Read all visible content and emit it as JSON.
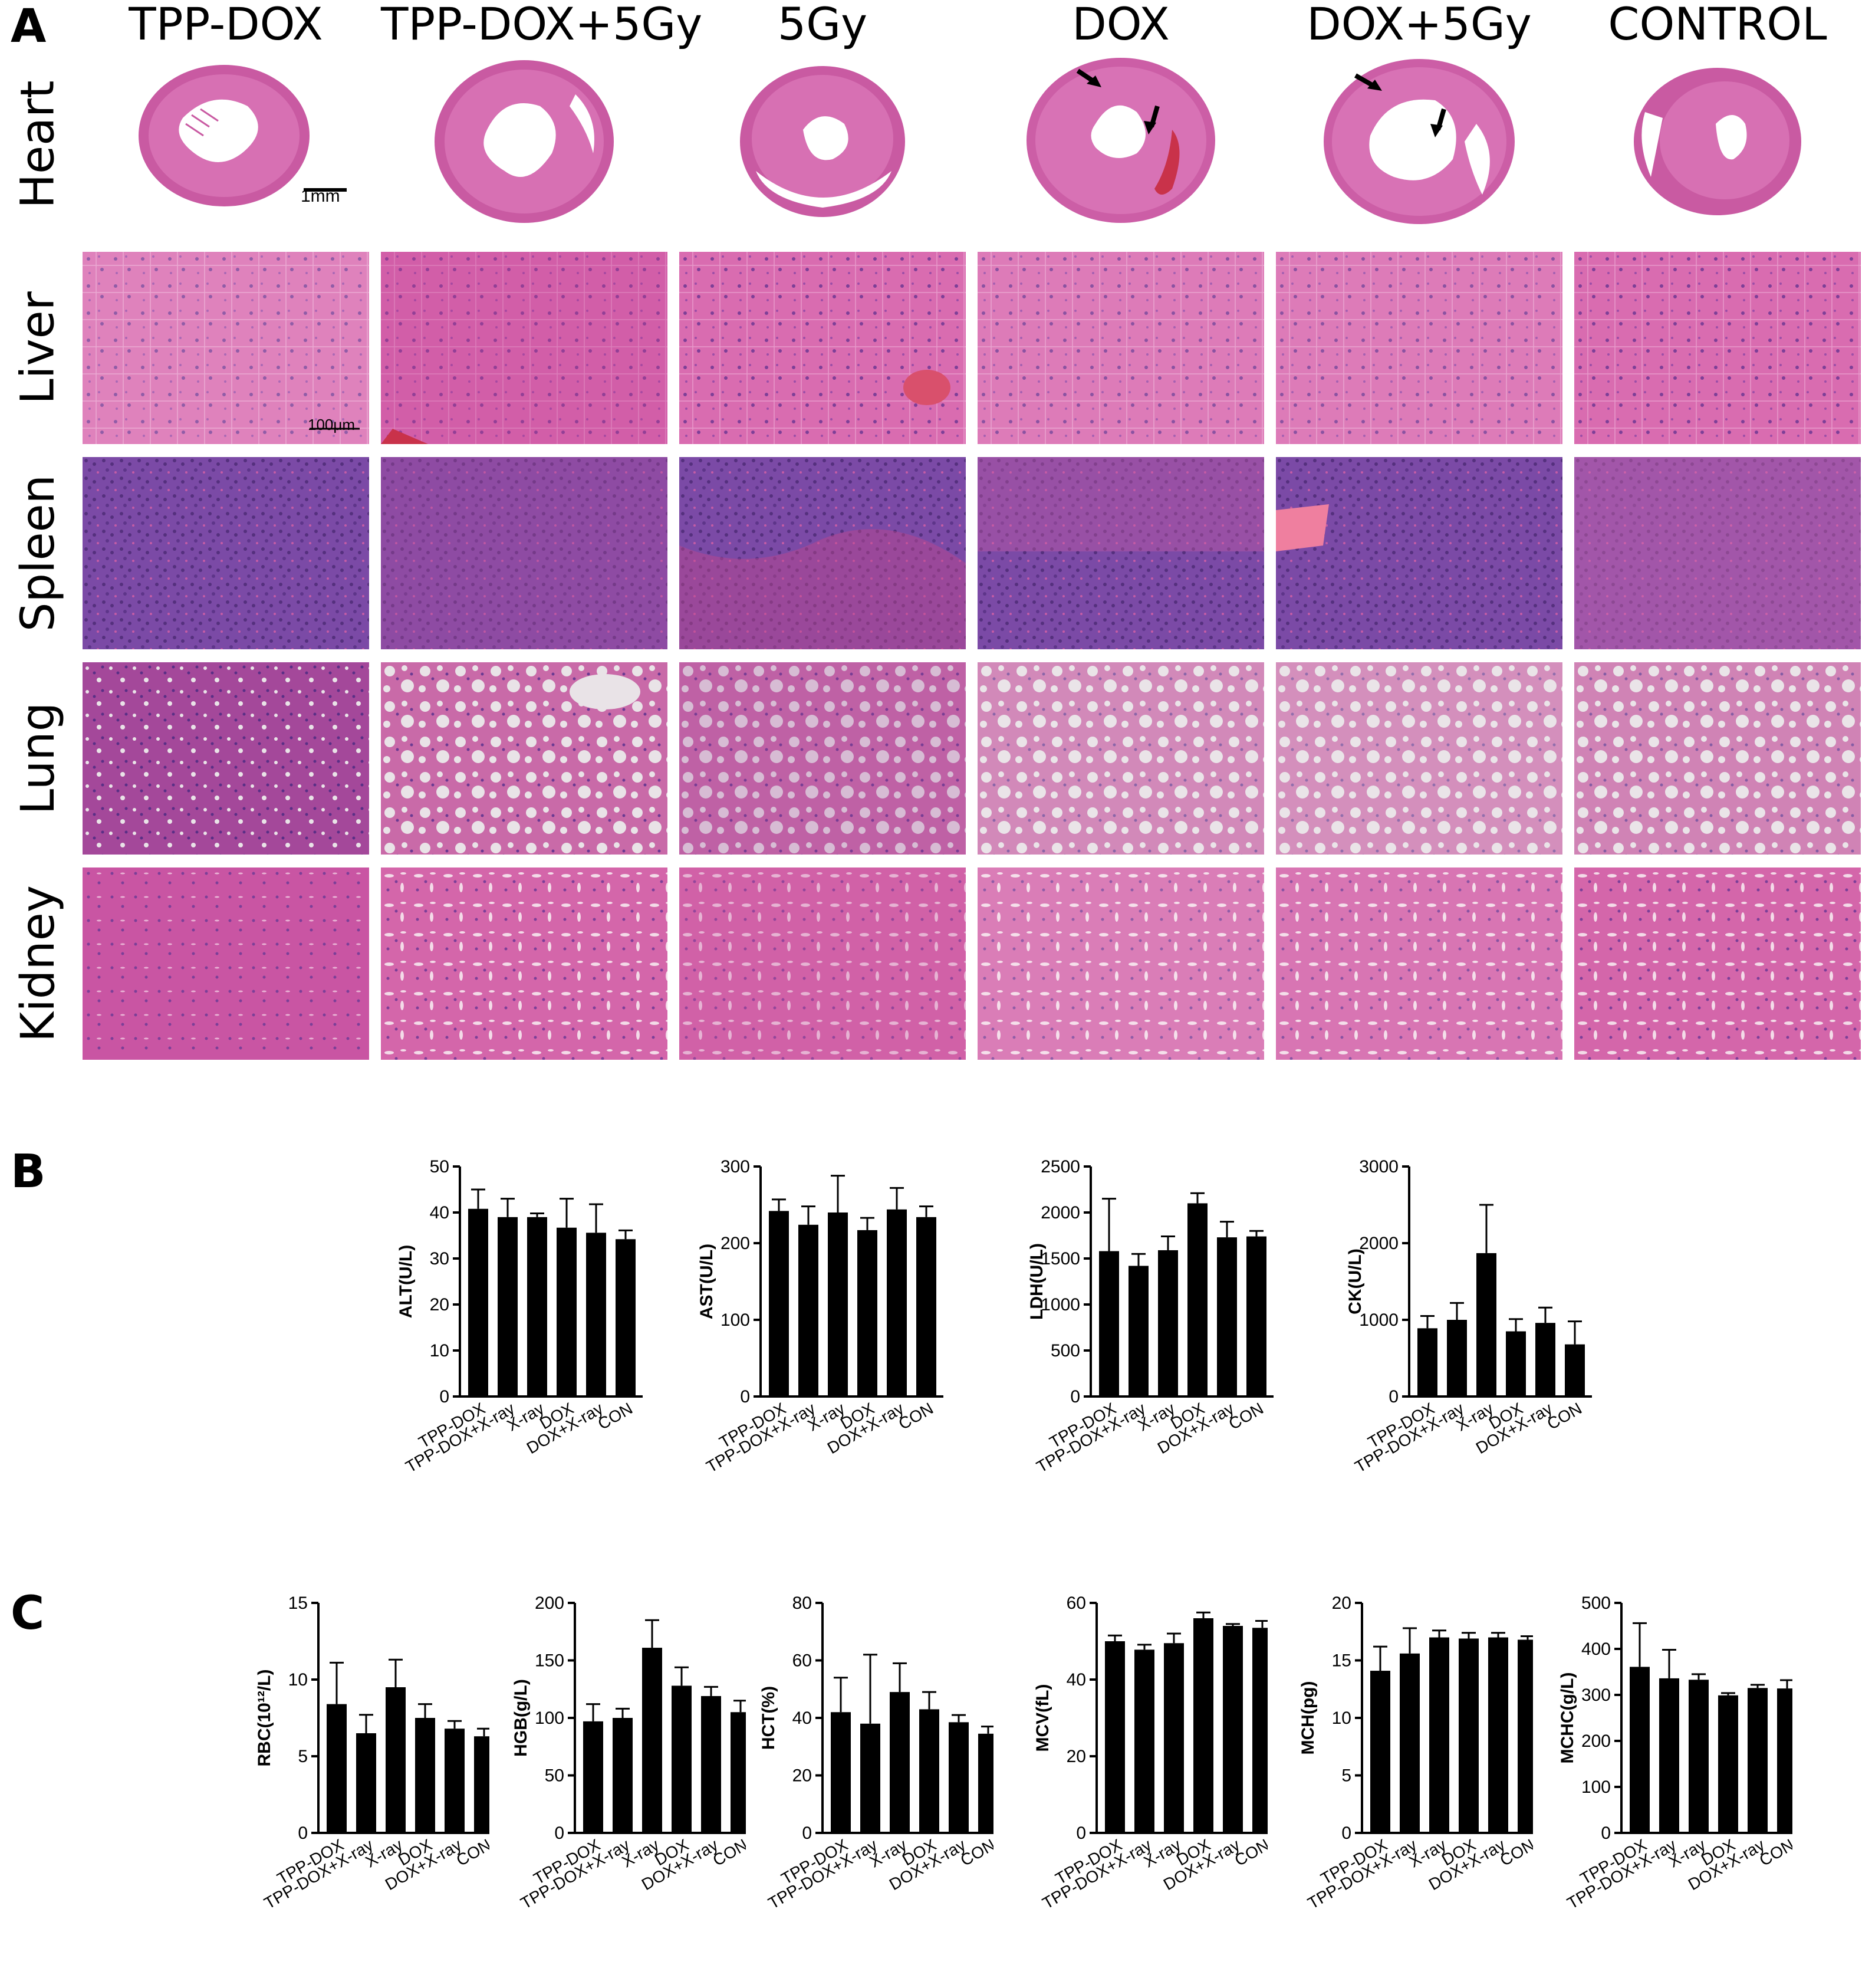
{
  "panel_labels": {
    "a": "A",
    "b": "B",
    "c": "C"
  },
  "panel_a": {
    "columns": [
      "TPP-DOX",
      "TPP-DOX+5Gy",
      "5Gy",
      "DOX",
      "DOX+5Gy",
      "CONTROL"
    ],
    "rows": [
      "Heart",
      "Liver",
      "Spleen",
      "Lung",
      "Kidney"
    ],
    "scale_bars": {
      "heart": "1mm",
      "tissue": "100μm"
    },
    "colors": {
      "he_pink": "#d45aa6",
      "he_purple": "#8a4aa8",
      "he_dense": "#6a3e9e",
      "he_light": "#e8a7cf",
      "blood": "#c9324a"
    }
  },
  "chart_data": [
    {
      "type": "bar",
      "panel": "B",
      "ylabel": "ALT(U/L)",
      "categories": [
        "TPP-DOX",
        "TPP-DOX+X-ray",
        "X-ray",
        "DOX",
        "DOX+X-ray",
        "CON"
      ],
      "values": [
        40.8,
        39,
        39,
        36.7,
        35.6,
        34.2
      ],
      "errors": [
        4.2,
        4.0,
        0.8,
        6.3,
        6.2,
        1.9
      ],
      "ylim": [
        0,
        50
      ],
      "ticks": [
        0,
        10,
        20,
        30,
        40,
        50
      ]
    },
    {
      "type": "bar",
      "panel": "B",
      "ylabel": "AST(U/L)",
      "categories": [
        "TPP-DOX",
        "TPP-DOX+X-ray",
        "X-ray",
        "DOX",
        "DOX+X-ray",
        "CON"
      ],
      "values": [
        242,
        224,
        240,
        217,
        244,
        234
      ],
      "errors": [
        15,
        24,
        48,
        16,
        28,
        14
      ],
      "ylim": [
        0,
        300
      ],
      "ticks": [
        0,
        100,
        200,
        300
      ]
    },
    {
      "type": "bar",
      "panel": "B",
      "ylabel": "LDH(U/L)",
      "categories": [
        "TPP-DOX",
        "TPP-DOX+X-ray",
        "X-ray",
        "DOX",
        "DOX+X-ray",
        "CON"
      ],
      "values": [
        1580,
        1420,
        1590,
        2100,
        1730,
        1740
      ],
      "errors": [
        570,
        130,
        150,
        110,
        170,
        60
      ],
      "ylim": [
        0,
        2500
      ],
      "ticks": [
        0,
        500,
        1000,
        1500,
        2000,
        2500
      ]
    },
    {
      "type": "bar",
      "panel": "B",
      "ylabel": "CK(U/L)",
      "categories": [
        "TPP-DOX",
        "TPP-DOX+X-ray",
        "X-ray",
        "DOX",
        "DOX+X-ray",
        "CON"
      ],
      "values": [
        890,
        1000,
        1870,
        850,
        960,
        680
      ],
      "errors": [
        160,
        220,
        630,
        160,
        200,
        300
      ],
      "ylim": [
        0,
        3000
      ],
      "ticks": [
        0,
        1000,
        2000,
        3000
      ]
    },
    {
      "type": "bar",
      "panel": "C",
      "ylabel": "RBC(10¹²/L)",
      "categories": [
        "TPP-DOX",
        "TPP-DOX+X-ray",
        "X-ray",
        "DOX",
        "DOX+X-ray",
        "CON"
      ],
      "values": [
        8.4,
        6.5,
        9.5,
        7.5,
        6.8,
        6.3
      ],
      "errors": [
        2.7,
        1.2,
        1.8,
        0.9,
        0.5,
        0.5
      ],
      "ylim": [
        0,
        15
      ],
      "ticks": [
        0,
        5,
        10,
        15
      ]
    },
    {
      "type": "bar",
      "panel": "C",
      "ylabel": "HGB(g/L)",
      "categories": [
        "TPP-DOX",
        "TPP-DOX+X-ray",
        "X-ray",
        "DOX",
        "DOX+X-ray",
        "CON"
      ],
      "values": [
        97,
        100,
        161,
        128,
        119,
        105
      ],
      "errors": [
        15,
        8,
        24,
        16,
        8,
        10
      ],
      "ylim": [
        0,
        200
      ],
      "ticks": [
        0,
        50,
        100,
        150,
        200
      ]
    },
    {
      "type": "bar",
      "panel": "C",
      "ylabel": "HCT(%)",
      "categories": [
        "TPP-DOX",
        "TPP-DOX+X-ray",
        "X-ray",
        "DOX",
        "DOX+X-ray",
        "CON"
      ],
      "values": [
        42,
        38,
        49,
        43,
        38.5,
        34.5
      ],
      "errors": [
        12,
        24,
        10,
        6,
        2.5,
        2.5
      ],
      "ylim": [
        0,
        80
      ],
      "ticks": [
        0,
        20,
        40,
        60,
        80
      ]
    },
    {
      "type": "bar",
      "panel": "C",
      "ylabel": "MCV(fL)",
      "categories": [
        "TPP-DOX",
        "TPP-DOX+X-ray",
        "X-ray",
        "DOX",
        "DOX+X-ray",
        "CON"
      ],
      "values": [
        50,
        47.8,
        49.5,
        56,
        54,
        53.5
      ],
      "errors": [
        1.5,
        1.3,
        2.5,
        1.5,
        0.5,
        1.8
      ],
      "ylim": [
        0,
        60
      ],
      "ticks": [
        0,
        20,
        40,
        60
      ]
    },
    {
      "type": "bar",
      "panel": "C",
      "ylabel": "MCH(pg)",
      "categories": [
        "TPP-DOX",
        "TPP-DOX+X-ray",
        "X-ray",
        "DOX",
        "DOX+X-ray",
        "CON"
      ],
      "values": [
        14.1,
        15.6,
        17,
        16.9,
        17,
        16.8
      ],
      "errors": [
        2.1,
        2.2,
        0.6,
        0.5,
        0.4,
        0.3
      ],
      "ylim": [
        0,
        20
      ],
      "ticks": [
        0,
        5,
        10,
        15,
        20
      ]
    },
    {
      "type": "bar",
      "panel": "C",
      "ylabel": "MCHC(g/L)",
      "categories": [
        "TPP-DOX",
        "TPP-DOX+X-ray",
        "X-ray",
        "DOX",
        "DOX+X-ray",
        "CON"
      ],
      "values": [
        361,
        336,
        333,
        299,
        315,
        314
      ],
      "errors": [
        95,
        62,
        12,
        5,
        7,
        18
      ],
      "ylim": [
        0,
        500
      ],
      "ticks": [
        0,
        100,
        200,
        300,
        400,
        500
      ]
    }
  ]
}
